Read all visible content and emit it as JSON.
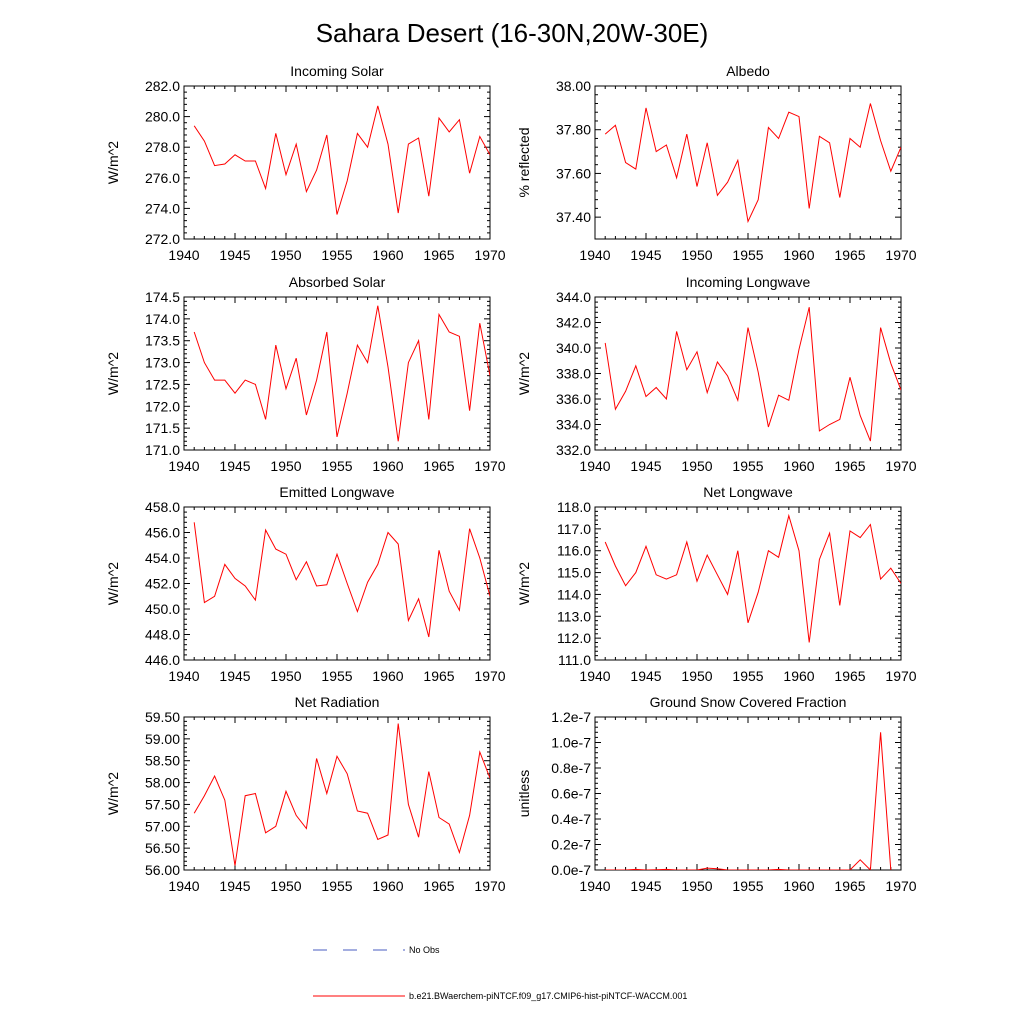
{
  "title": "Sahara Desert (16-30N,20W-30E)",
  "colors": {
    "model": "#ff0000",
    "obs": "#4a5cc0",
    "axis": "#000000"
  },
  "legend": {
    "obs_label": "No Obs",
    "model_label": "b.e21.BWaerchem-piNTCF.f09_g17.CMIP6-hist-piNTCF-WACCM.001"
  },
  "chart_data": [
    {
      "type": "line",
      "title": "Incoming Solar",
      "ylabel": "W/m^2",
      "xlim": [
        1940,
        1970
      ],
      "ylim": [
        272,
        282
      ],
      "xticks": [
        1940,
        1945,
        1950,
        1955,
        1960,
        1965,
        1970
      ],
      "yticks": [
        272,
        274,
        276,
        278,
        280,
        282
      ],
      "ytick_labels": [
        "272.0",
        "274.0",
        "276.0",
        "278.0",
        "280.0",
        "282.0"
      ],
      "x": [
        1941,
        1942,
        1943,
        1944,
        1945,
        1946,
        1947,
        1948,
        1949,
        1950,
        1951,
        1952,
        1953,
        1954,
        1955,
        1956,
        1957,
        1958,
        1959,
        1960,
        1961,
        1962,
        1963,
        1964,
        1965,
        1966,
        1967,
        1968,
        1969,
        1970
      ],
      "y": [
        279.4,
        278.4,
        276.8,
        276.9,
        277.5,
        277.1,
        277.1,
        275.3,
        278.9,
        276.2,
        278.2,
        275.1,
        276.5,
        278.8,
        273.6,
        275.8,
        278.9,
        278.0,
        280.7,
        278.2,
        273.7,
        278.2,
        278.6,
        274.8,
        279.9,
        279.0,
        279.8,
        276.3,
        278.7,
        277.5
      ]
    },
    {
      "type": "line",
      "title": "Albedo",
      "ylabel": "% reflected",
      "xlim": [
        1940,
        1970
      ],
      "ylim": [
        37.3,
        38.0
      ],
      "xticks": [
        1940,
        1945,
        1950,
        1955,
        1960,
        1965,
        1970
      ],
      "yticks": [
        37.4,
        37.6,
        37.8,
        38.0
      ],
      "ytick_labels": [
        "37.40",
        "37.60",
        "37.80",
        "38.00"
      ],
      "x": [
        1941,
        1942,
        1943,
        1944,
        1945,
        1946,
        1947,
        1948,
        1949,
        1950,
        1951,
        1952,
        1953,
        1954,
        1955,
        1956,
        1957,
        1958,
        1959,
        1960,
        1961,
        1962,
        1963,
        1964,
        1965,
        1966,
        1967,
        1968,
        1969,
        1970
      ],
      "y": [
        37.78,
        37.82,
        37.65,
        37.62,
        37.9,
        37.7,
        37.73,
        37.58,
        37.78,
        37.54,
        37.74,
        37.5,
        37.56,
        37.66,
        37.38,
        37.48,
        37.81,
        37.76,
        37.88,
        37.86,
        37.44,
        37.77,
        37.74,
        37.49,
        37.76,
        37.72,
        37.92,
        37.75,
        37.61,
        37.72
      ]
    },
    {
      "type": "line",
      "title": "Absorbed Solar",
      "ylabel": "W/m^2",
      "xlim": [
        1940,
        1970
      ],
      "ylim": [
        171.0,
        174.5
      ],
      "xticks": [
        1940,
        1945,
        1950,
        1955,
        1960,
        1965,
        1970
      ],
      "yticks": [
        171.0,
        171.5,
        172.0,
        172.5,
        173.0,
        173.5,
        174.0,
        174.5
      ],
      "ytick_labels": [
        "171.0",
        "171.5",
        "172.0",
        "172.5",
        "173.0",
        "173.5",
        "174.0",
        "174.5"
      ],
      "x": [
        1941,
        1942,
        1943,
        1944,
        1945,
        1946,
        1947,
        1948,
        1949,
        1950,
        1951,
        1952,
        1953,
        1954,
        1955,
        1956,
        1957,
        1958,
        1959,
        1960,
        1961,
        1962,
        1963,
        1964,
        1965,
        1966,
        1967,
        1968,
        1969,
        1970
      ],
      "y": [
        173.7,
        173.0,
        172.6,
        172.6,
        172.3,
        172.6,
        172.5,
        171.7,
        173.4,
        172.4,
        173.1,
        171.8,
        172.6,
        173.7,
        171.3,
        172.3,
        173.4,
        173.0,
        174.3,
        172.9,
        171.2,
        173.0,
        173.5,
        171.7,
        174.1,
        173.7,
        173.6,
        171.9,
        173.9,
        172.7
      ]
    },
    {
      "type": "line",
      "title": "Incoming Longwave",
      "ylabel": "W/m^2",
      "xlim": [
        1940,
        1970
      ],
      "ylim": [
        332,
        344
      ],
      "xticks": [
        1940,
        1945,
        1950,
        1955,
        1960,
        1965,
        1970
      ],
      "yticks": [
        332,
        334,
        336,
        338,
        340,
        342,
        344
      ],
      "ytick_labels": [
        "332.0",
        "334.0",
        "336.0",
        "338.0",
        "340.0",
        "342.0",
        "344.0"
      ],
      "x": [
        1941,
        1942,
        1943,
        1944,
        1945,
        1946,
        1947,
        1948,
        1949,
        1950,
        1951,
        1952,
        1953,
        1954,
        1955,
        1956,
        1957,
        1958,
        1959,
        1960,
        1961,
        1962,
        1963,
        1964,
        1965,
        1966,
        1967,
        1968,
        1969,
        1970
      ],
      "y": [
        340.4,
        335.2,
        336.6,
        338.6,
        336.2,
        336.9,
        336.0,
        341.3,
        338.3,
        339.7,
        336.5,
        338.9,
        337.8,
        335.9,
        341.6,
        338.1,
        333.8,
        336.3,
        335.9,
        339.9,
        343.2,
        333.5,
        334.0,
        334.4,
        337.7,
        334.7,
        332.7,
        341.6,
        338.8,
        336.7
      ]
    },
    {
      "type": "line",
      "title": "Emitted Longwave",
      "ylabel": "W/m^2",
      "xlim": [
        1940,
        1970
      ],
      "ylim": [
        446,
        458
      ],
      "xticks": [
        1940,
        1945,
        1950,
        1955,
        1960,
        1965,
        1970
      ],
      "yticks": [
        446,
        448,
        450,
        452,
        454,
        456,
        458
      ],
      "ytick_labels": [
        "446.0",
        "448.0",
        "450.0",
        "452.0",
        "454.0",
        "456.0",
        "458.0"
      ],
      "x": [
        1941,
        1942,
        1943,
        1944,
        1945,
        1946,
        1947,
        1948,
        1949,
        1950,
        1951,
        1952,
        1953,
        1954,
        1955,
        1956,
        1957,
        1958,
        1959,
        1960,
        1961,
        1962,
        1963,
        1964,
        1965,
        1966,
        1967,
        1968,
        1969,
        1970
      ],
      "y": [
        456.8,
        450.5,
        451.0,
        453.5,
        452.4,
        451.8,
        450.7,
        456.2,
        454.7,
        454.3,
        452.3,
        453.7,
        451.8,
        451.9,
        454.3,
        452.0,
        449.8,
        452.1,
        453.5,
        456.0,
        455.1,
        449.1,
        450.8,
        447.8,
        454.6,
        451.4,
        449.9,
        456.3,
        454.0,
        451.0
      ]
    },
    {
      "type": "line",
      "title": "Net Longwave",
      "ylabel": "W/m^2",
      "xlim": [
        1940,
        1970
      ],
      "ylim": [
        111,
        118
      ],
      "xticks": [
        1940,
        1945,
        1950,
        1955,
        1960,
        1965,
        1970
      ],
      "yticks": [
        111,
        112,
        113,
        114,
        115,
        116,
        117,
        118
      ],
      "ytick_labels": [
        "111.0",
        "112.0",
        "113.0",
        "114.0",
        "115.0",
        "116.0",
        "117.0",
        "118.0"
      ],
      "x": [
        1941,
        1942,
        1943,
        1944,
        1945,
        1946,
        1947,
        1948,
        1949,
        1950,
        1951,
        1952,
        1953,
        1954,
        1955,
        1956,
        1957,
        1958,
        1959,
        1960,
        1961,
        1962,
        1963,
        1964,
        1965,
        1966,
        1967,
        1968,
        1969,
        1970
      ],
      "y": [
        116.4,
        115.3,
        114.4,
        115.0,
        116.2,
        114.9,
        114.7,
        114.9,
        116.4,
        114.6,
        115.8,
        114.9,
        114.0,
        116.0,
        112.7,
        114.1,
        116.0,
        115.7,
        117.6,
        116.0,
        111.8,
        115.6,
        116.8,
        113.5,
        116.9,
        116.6,
        117.2,
        114.7,
        115.2,
        114.5
      ]
    },
    {
      "type": "line",
      "title": "Net Radiation",
      "ylabel": "W/m^2",
      "xlim": [
        1940,
        1970
      ],
      "ylim": [
        56.0,
        59.5
      ],
      "xticks": [
        1940,
        1945,
        1950,
        1955,
        1960,
        1965,
        1970
      ],
      "yticks": [
        56.0,
        56.5,
        57.0,
        57.5,
        58.0,
        58.5,
        59.0,
        59.5
      ],
      "ytick_labels": [
        "56.00",
        "56.50",
        "57.00",
        "57.50",
        "58.00",
        "58.50",
        "59.00",
        "59.50"
      ],
      "x": [
        1941,
        1942,
        1943,
        1944,
        1945,
        1946,
        1947,
        1948,
        1949,
        1950,
        1951,
        1952,
        1953,
        1954,
        1955,
        1956,
        1957,
        1958,
        1959,
        1960,
        1961,
        1962,
        1963,
        1964,
        1965,
        1966,
        1967,
        1968,
        1969,
        1970
      ],
      "y": [
        57.3,
        57.7,
        58.15,
        57.6,
        56.1,
        57.7,
        57.75,
        56.85,
        57.0,
        57.8,
        57.25,
        56.95,
        58.55,
        57.75,
        58.6,
        58.2,
        57.35,
        57.3,
        56.7,
        56.8,
        59.35,
        57.5,
        56.75,
        58.25,
        57.2,
        57.05,
        56.4,
        57.25,
        58.7,
        58.1
      ]
    },
    {
      "type": "line",
      "title": "Ground Snow Covered Fraction",
      "ylabel": "unitless",
      "xlim": [
        1940,
        1970
      ],
      "ylim": [
        0,
        1.2e-07
      ],
      "xticks": [
        1940,
        1945,
        1950,
        1955,
        1960,
        1965,
        1970
      ],
      "yticks": [
        0,
        2e-08,
        4e-08,
        6e-08,
        8e-08,
        1e-07,
        1.2e-07
      ],
      "ytick_labels": [
        "0.0e-7",
        "0.2e-7",
        "0.4e-7",
        "0.6e-7",
        "0.8e-7",
        "1.0e-7",
        "1.2e-7"
      ],
      "x": [
        1941,
        1942,
        1943,
        1944,
        1945,
        1946,
        1947,
        1948,
        1949,
        1950,
        1951,
        1952,
        1953,
        1954,
        1955,
        1956,
        1957,
        1958,
        1959,
        1960,
        1961,
        1962,
        1963,
        1964,
        1965,
        1966,
        1967,
        1968,
        1969
      ],
      "y": [
        0,
        0,
        0,
        5e-10,
        0,
        2e-10,
        5e-10,
        0,
        0,
        0,
        1.5e-09,
        1e-09,
        0,
        0,
        0,
        0,
        0,
        5e-10,
        0,
        0,
        0,
        0,
        0,
        0,
        0,
        8e-09,
        0,
        1.08e-07,
        0
      ]
    }
  ]
}
